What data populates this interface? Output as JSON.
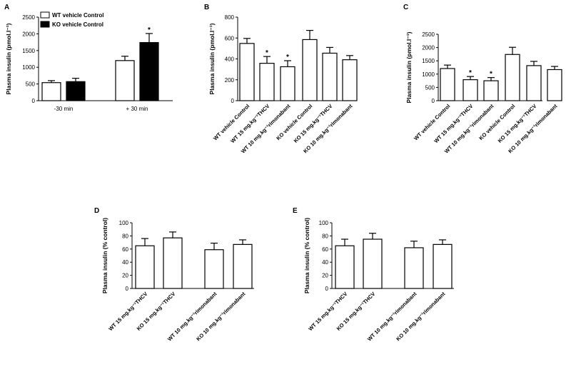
{
  "chart_data": [
    {
      "panel": "A",
      "type": "bar",
      "ylabel": "Plasma insulin (pmol.l⁻¹)",
      "ylim": [
        0,
        2500
      ],
      "yticks": [
        "0",
        "500",
        "1000",
        "1500",
        "2000",
        "2500"
      ],
      "groups": [
        "-30 min",
        "+ 30 min"
      ],
      "legend": [
        {
          "label": "WT vehicle Control",
          "fill": "#ffffff"
        },
        {
          "label": "KO vehicle Control",
          "fill": "#000000"
        }
      ],
      "series": [
        {
          "name": "WT vehicle Control",
          "fill": "#ffffff",
          "values": [
            540,
            1200
          ],
          "errors": [
            60,
            130
          ],
          "marks": [
            "",
            ""
          ]
        },
        {
          "name": "KO vehicle Control",
          "fill": "#000000",
          "values": [
            570,
            1740
          ],
          "errors": [
            100,
            270
          ],
          "marks": [
            "",
            "*"
          ]
        }
      ]
    },
    {
      "panel": "B",
      "type": "bar",
      "ylabel": "Plasma insulin (pmol.l⁻¹)",
      "ylim": [
        0,
        800
      ],
      "yticks": [
        "0",
        "200",
        "400",
        "600",
        "800"
      ],
      "categories": [
        "WT vehicle Control",
        "WT 15 mg.kg⁻¹THCV",
        "WT 10 mg.kg⁻¹rimonabant",
        "KO vehicle Control",
        "KO 15 mg.kg⁻¹THCV",
        "KO 10 mg.kg⁻¹rimonabant"
      ],
      "values": [
        548,
        358,
        325,
        585,
        455,
        392
      ],
      "errors": [
        48,
        65,
        58,
        88,
        55,
        40
      ],
      "marks": [
        "",
        "*",
        "*",
        "",
        "",
        ""
      ]
    },
    {
      "panel": "C",
      "type": "bar",
      "ylabel": "Plasma insulin (pmol.l⁻¹)",
      "ylim": [
        0,
        2500
      ],
      "yticks": [
        "0",
        "500",
        "1000",
        "1500",
        "2000",
        "2500"
      ],
      "categories": [
        "WT vehicle Control",
        "WT 15 mg.kg⁻¹THCV",
        "WT 10 mg.kg⁻¹rimonabant",
        "KO vehicle Control",
        "KO 15 mg.kg⁻¹THCV",
        "KO 10 mg.kg⁻¹rimonabant"
      ],
      "values": [
        1210,
        790,
        750,
        1740,
        1320,
        1170
      ],
      "errors": [
        130,
        120,
        120,
        270,
        160,
        120
      ],
      "marks": [
        "",
        "*",
        "*",
        "",
        "",
        ""
      ]
    },
    {
      "panel": "D",
      "type": "bar",
      "ylabel": "Plasma insulin (% control)",
      "ylim": [
        0,
        100
      ],
      "yticks": [
        "0",
        "20",
        "40",
        "60",
        "80",
        "100"
      ],
      "categories": [
        "WT 15 mg.kg⁻¹THCV",
        "KO 15 mg.kg⁻¹THCV",
        "WT 10 mg.kg⁻¹rimonabant",
        "KO 10 mg.kg⁻¹rimonabant"
      ],
      "values": [
        65,
        77,
        59,
        67
      ],
      "errors": [
        11,
        9,
        10,
        7
      ],
      "marks": [
        "",
        "",
        "",
        ""
      ]
    },
    {
      "panel": "E",
      "type": "bar",
      "ylabel": "Plasma insulin (% control)",
      "ylim": [
        0,
        100
      ],
      "yticks": [
        "0",
        "20",
        "40",
        "60",
        "80",
        "100"
      ],
      "categories": [
        "WT 15 mg.kg⁻¹THCV",
        "KO 15 mg.kg⁻¹THCV",
        "WT 10 mg.kg⁻¹rimonabant",
        "KO 10 mg.kg⁻¹rimonabant"
      ],
      "values": [
        65,
        75,
        62,
        67
      ],
      "errors": [
        10,
        9,
        10,
        7
      ],
      "marks": [
        "",
        "",
        "",
        ""
      ]
    }
  ]
}
